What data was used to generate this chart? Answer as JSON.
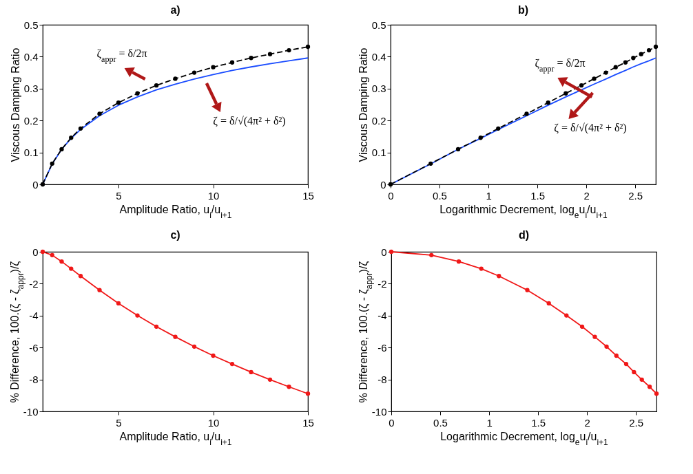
{
  "chart_data": [
    {
      "type": "line",
      "title": "a)",
      "xlabel": "Amplitude Ratio, u$_{i}$/u$_{i+1}$",
      "ylabel": "Viscous Damping Ratio",
      "x": [
        1,
        1.5,
        2,
        2.5,
        3,
        4,
        5,
        6,
        7,
        8,
        9,
        10,
        11,
        12,
        13,
        14,
        15
      ],
      "xlim": [
        1,
        15
      ],
      "xticks": [
        5,
        10,
        15
      ],
      "ylim": [
        0,
        0.5
      ],
      "yticks": [
        0,
        0.1,
        0.2,
        0.3,
        0.4,
        0.5
      ],
      "series": [
        {
          "color": "#1a4cff",
          "marker": "none",
          "line_style": "solid",
          "values": [
            0,
            0.064,
            0.11,
            0.144,
            0.172,
            0.215,
            0.248,
            0.274,
            0.296,
            0.314,
            0.33,
            0.344,
            0.357,
            0.368,
            0.378,
            0.387,
            0.396
          ]
        },
        {
          "color": "#000000",
          "marker": "circle",
          "line_style": "dashed",
          "values": [
            0,
            0.065,
            0.11,
            0.146,
            0.175,
            0.221,
            0.256,
            0.285,
            0.31,
            0.331,
            0.35,
            0.367,
            0.382,
            0.396,
            0.408,
            0.42,
            0.431
          ]
        }
      ],
      "annotations": [
        "ζ$_{appr}$ = δ/2π",
        "ζ = δ/√(4π² + δ²)"
      ]
    },
    {
      "type": "line",
      "title": "b)",
      "xlabel": "Logarithmic Decrement, log$_{e}$u$_{i}$/u$_{i+1}$",
      "ylabel": "Viscous Damping Ratio",
      "x": [
        0,
        0.41,
        0.69,
        0.92,
        1.1,
        1.39,
        1.61,
        1.79,
        1.95,
        2.08,
        2.2,
        2.3,
        2.4,
        2.48,
        2.56,
        2.64,
        2.71
      ],
      "xlim": [
        0,
        2.71
      ],
      "xticks": [
        0,
        0.5,
        1,
        1.5,
        2,
        2.5
      ],
      "ylim": [
        0,
        0.5
      ],
      "yticks": [
        0,
        0.1,
        0.2,
        0.3,
        0.4,
        0.5
      ],
      "series": [
        {
          "color": "#1a4cff",
          "marker": "none",
          "line_style": "solid",
          "values": [
            0,
            0.064,
            0.11,
            0.144,
            0.172,
            0.215,
            0.248,
            0.274,
            0.296,
            0.314,
            0.33,
            0.344,
            0.357,
            0.368,
            0.378,
            0.387,
            0.396
          ]
        },
        {
          "color": "#000000",
          "marker": "circle",
          "line_style": "dashed",
          "values": [
            0,
            0.065,
            0.11,
            0.146,
            0.175,
            0.221,
            0.256,
            0.285,
            0.31,
            0.331,
            0.35,
            0.367,
            0.382,
            0.396,
            0.408,
            0.42,
            0.431
          ]
        }
      ],
      "annotations": [
        "ζ$_{appr}$ = δ/2π",
        "ζ = δ/√(4π² + δ²)"
      ]
    },
    {
      "type": "line",
      "title": "c)",
      "xlabel": "Amplitude Ratio, u$_{i}$/u$_{i+1}$",
      "ylabel": "% Difference, 100.(ζ - ζ$_{appr}$)/ζ",
      "x": [
        1,
        1.5,
        2,
        2.5,
        3,
        4,
        5,
        6,
        7,
        8,
        9,
        10,
        11,
        12,
        13,
        14,
        15
      ],
      "xlim": [
        1,
        15
      ],
      "xticks": [
        5,
        10,
        15
      ],
      "ylim": [
        -10,
        0
      ],
      "yticks": [
        -10,
        -8,
        -6,
        -4,
        -2,
        0
      ],
      "series": [
        {
          "color": "#f01818",
          "marker": "circle",
          "line_style": "solid",
          "values": [
            0,
            -0.21,
            -0.61,
            -1.06,
            -1.52,
            -2.4,
            -3.23,
            -3.99,
            -4.69,
            -5.33,
            -5.94,
            -6.51,
            -7.03,
            -7.54,
            -8.01,
            -8.46,
            -8.89
          ]
        }
      ]
    },
    {
      "type": "line",
      "title": "d)",
      "xlabel": "Logarithmic Decrement, log$_{e}$u$_{i}$/u$_{i+1}$",
      "ylabel": "% Difference, 100.(ζ - ζ$_{appr}$)/ζ",
      "x": [
        0,
        0.41,
        0.69,
        0.92,
        1.1,
        1.39,
        1.61,
        1.79,
        1.95,
        2.08,
        2.2,
        2.3,
        2.4,
        2.48,
        2.56,
        2.64,
        2.71
      ],
      "xlim": [
        0,
        2.71
      ],
      "xticks": [
        0,
        0.5,
        1,
        1.5,
        2,
        2.5
      ],
      "ylim": [
        -10,
        0
      ],
      "yticks": [
        -10,
        -8,
        -6,
        -4,
        -2,
        0
      ],
      "series": [
        {
          "color": "#f01818",
          "marker": "circle",
          "line_style": "solid",
          "values": [
            0,
            -0.21,
            -0.61,
            -1.06,
            -1.52,
            -2.4,
            -3.23,
            -3.99,
            -4.69,
            -5.33,
            -5.94,
            -6.51,
            -7.03,
            -7.54,
            -8.01,
            -8.46,
            -8.89
          ]
        }
      ]
    }
  ]
}
